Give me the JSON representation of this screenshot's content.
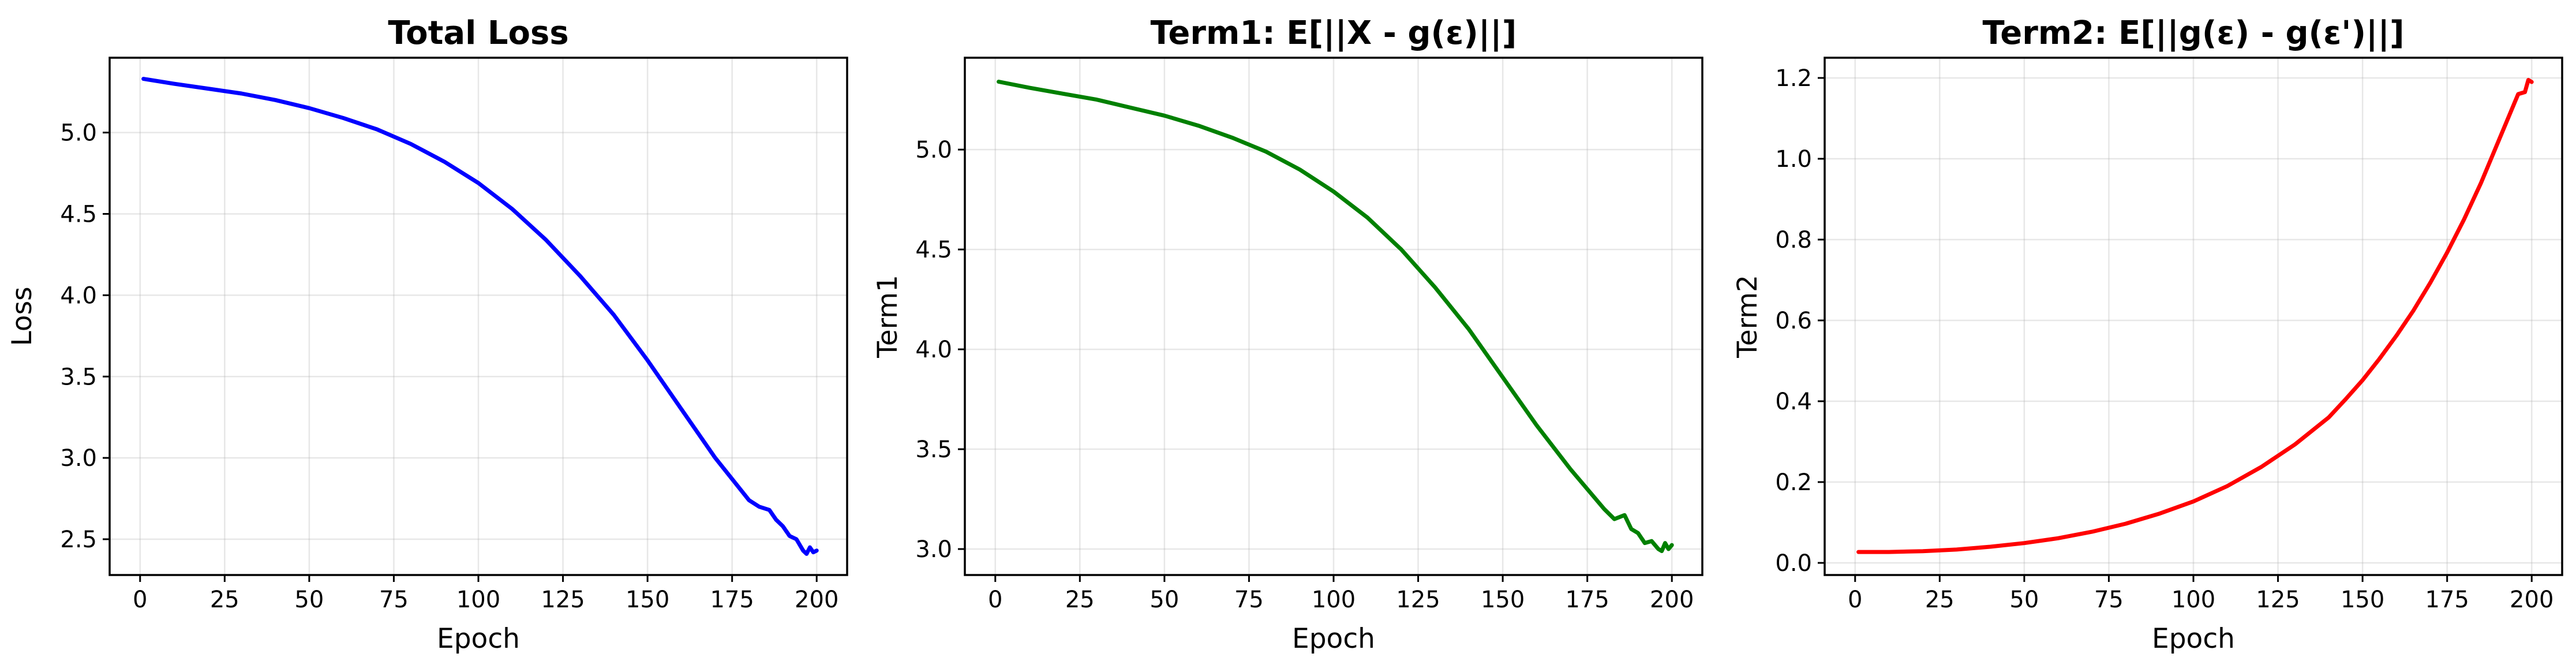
{
  "chart_data": [
    {
      "type": "line",
      "title": "Total Loss",
      "xlabel": "Epoch",
      "ylabel": "Loss",
      "xlim": [
        -9,
        209
      ],
      "ylim": [
        2.28,
        5.46
      ],
      "xticks": [
        0,
        25,
        50,
        75,
        100,
        125,
        150,
        175,
        200
      ],
      "yticks": [
        2.5,
        3.0,
        3.5,
        4.0,
        4.5,
        5.0
      ],
      "ytick_labels": [
        "2.5",
        "3.0",
        "3.5",
        "4.0",
        "4.5",
        "5.0"
      ],
      "grid": true,
      "color": "#0000ff",
      "series": [
        {
          "x": [
            1,
            10,
            20,
            30,
            40,
            50,
            60,
            70,
            80,
            90,
            100,
            110,
            120,
            130,
            140,
            150,
            160,
            170,
            180,
            183,
            186,
            188,
            190,
            192,
            194,
            196,
            197,
            198,
            199,
            200
          ],
          "y": [
            5.33,
            5.3,
            5.27,
            5.24,
            5.2,
            5.15,
            5.09,
            5.02,
            4.93,
            4.82,
            4.69,
            4.53,
            4.34,
            4.12,
            3.88,
            3.6,
            3.3,
            3.0,
            2.74,
            2.7,
            2.68,
            2.62,
            2.58,
            2.52,
            2.5,
            2.43,
            2.41,
            2.45,
            2.42,
            2.43
          ]
        }
      ]
    },
    {
      "type": "line",
      "title": "Term1: E[||X - g(ε)||]",
      "xlabel": "Epoch",
      "ylabel": "Term1",
      "xlim": [
        -9,
        209
      ],
      "ylim": [
        2.87,
        5.46
      ],
      "xticks": [
        0,
        25,
        50,
        75,
        100,
        125,
        150,
        175,
        200
      ],
      "yticks": [
        3.0,
        3.5,
        4.0,
        4.5,
        5.0
      ],
      "ytick_labels": [
        "3.0",
        "3.5",
        "4.0",
        "4.5",
        "5.0"
      ],
      "grid": true,
      "color": "#008000",
      "series": [
        {
          "x": [
            1,
            10,
            20,
            30,
            40,
            50,
            60,
            70,
            80,
            90,
            100,
            110,
            120,
            130,
            140,
            150,
            160,
            170,
            180,
            183,
            186,
            188,
            190,
            192,
            194,
            196,
            197,
            198,
            199,
            200
          ],
          "y": [
            5.34,
            5.31,
            5.28,
            5.25,
            5.21,
            5.17,
            5.12,
            5.06,
            4.99,
            4.9,
            4.79,
            4.66,
            4.5,
            4.31,
            4.1,
            3.86,
            3.62,
            3.4,
            3.2,
            3.15,
            3.17,
            3.1,
            3.08,
            3.03,
            3.04,
            3.0,
            2.99,
            3.03,
            3.0,
            3.02
          ]
        }
      ]
    },
    {
      "type": "line",
      "title": "Term2: E[||g(ε) - g(ε')||]",
      "xlabel": "Epoch",
      "ylabel": "Term2",
      "xlim": [
        -9,
        209
      ],
      "ylim": [
        -0.03,
        1.25
      ],
      "xticks": [
        0,
        25,
        50,
        75,
        100,
        125,
        150,
        175,
        200
      ],
      "yticks": [
        0.0,
        0.2,
        0.4,
        0.6,
        0.8,
        1.0,
        1.2
      ],
      "ytick_labels": [
        "0.0",
        "0.2",
        "0.4",
        "0.6",
        "0.8",
        "1.0",
        "1.2"
      ],
      "grid": true,
      "color": "#ff0000",
      "series": [
        {
          "x": [
            1,
            10,
            20,
            30,
            40,
            50,
            60,
            70,
            80,
            90,
            100,
            110,
            120,
            130,
            140,
            145,
            150,
            155,
            160,
            165,
            170,
            175,
            180,
            185,
            190,
            193,
            196,
            198,
            199,
            200
          ],
          "y": [
            0.027,
            0.027,
            0.029,
            0.033,
            0.04,
            0.049,
            0.061,
            0.077,
            0.097,
            0.122,
            0.152,
            0.19,
            0.237,
            0.293,
            0.36,
            0.405,
            0.452,
            0.505,
            0.562,
            0.624,
            0.693,
            0.768,
            0.85,
            0.94,
            1.04,
            1.1,
            1.16,
            1.165,
            1.195,
            1.19
          ]
        }
      ]
    }
  ]
}
